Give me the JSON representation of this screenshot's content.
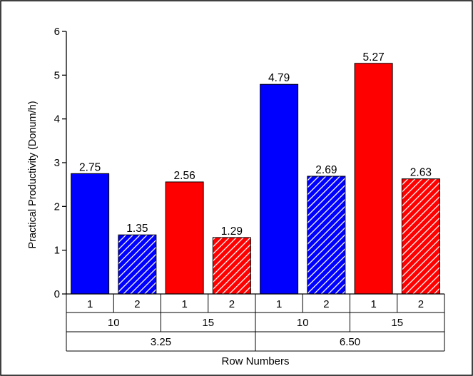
{
  "chart_data": {
    "type": "bar",
    "title": "",
    "ylabel": "Practical Productivity (Donum/h)",
    "xlabel": "Row Numbers",
    "ylim": [
      0,
      6
    ],
    "yticks": [
      "0",
      "1",
      "2",
      "3",
      "4",
      "5",
      "6"
    ],
    "grid": false,
    "colors": {
      "blue": "#0000ff",
      "red": "#ff0000"
    },
    "bars": [
      {
        "value": 2.75,
        "label": "2.75",
        "color": "blue",
        "pattern": "solid"
      },
      {
        "value": 1.35,
        "label": "1.35",
        "color": "blue",
        "pattern": "hatched"
      },
      {
        "value": 2.56,
        "label": "2.56",
        "color": "red",
        "pattern": "solid"
      },
      {
        "value": 1.29,
        "label": "1.29",
        "color": "red",
        "pattern": "hatched"
      },
      {
        "value": 4.79,
        "label": "4.79",
        "color": "blue",
        "pattern": "solid"
      },
      {
        "value": 2.69,
        "label": "2.69",
        "color": "blue",
        "pattern": "hatched"
      },
      {
        "value": 5.27,
        "label": "5.27",
        "color": "red",
        "pattern": "solid"
      },
      {
        "value": 2.63,
        "label": "2.63",
        "color": "red",
        "pattern": "hatched"
      }
    ],
    "category_rows": [
      [
        "1",
        "2",
        "1",
        "2",
        "1",
        "2",
        "1",
        "2"
      ],
      [
        "10",
        "15",
        "10",
        "15"
      ],
      [
        "3.25",
        "6.50"
      ]
    ]
  }
}
